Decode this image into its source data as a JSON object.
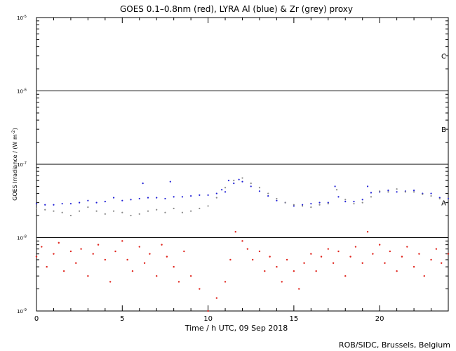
{
  "chart_data": {
    "type": "scatter",
    "title": "GOES 0.1–0.8nm (red), LYRA Al (blue) & Zr (grey) proxy",
    "xlabel": "Time / h UTC, 09 Sep 2018",
    "ylabel": "GOES Irradiance / (W m",
    "ylabel_sup": "-2",
    "ylabel_close": ")",
    "xlim": [
      0,
      24
    ],
    "ylim": [
      1e-09,
      1e-05
    ],
    "yscale": "log",
    "xticks": [
      0,
      5,
      10,
      15,
      20
    ],
    "yticks": [
      {
        "value": 1e-09,
        "base": "10",
        "exp": "-9"
      },
      {
        "value": 1e-08,
        "base": "10",
        "exp": "-8"
      },
      {
        "value": 1e-07,
        "base": "10",
        "exp": "-7"
      },
      {
        "value": 1e-06,
        "base": "10",
        "exp": "-6"
      },
      {
        "value": 1e-05,
        "base": "10",
        "exp": "-5"
      }
    ],
    "class_lines": [
      1e-08,
      1e-07,
      1e-06
    ],
    "class_labels": [
      {
        "label": "A",
        "value": 3e-08
      },
      {
        "label": "B",
        "value": 3e-07
      },
      {
        "label": "C",
        "value": 3e-06
      }
    ],
    "series": [
      {
        "color": "#1f1fd6",
        "size": 1.1,
        "points": [
          [
            0,
            2.9e-08
          ],
          [
            0.5,
            2.8e-08
          ],
          [
            1,
            2.8e-08
          ],
          [
            1.5,
            2.9e-08
          ],
          [
            2,
            2.9e-08
          ],
          [
            2.5,
            3e-08
          ],
          [
            3,
            3.2e-08
          ],
          [
            3.5,
            3e-08
          ],
          [
            4,
            3.1e-08
          ],
          [
            4.5,
            3.5e-08
          ],
          [
            5,
            3.2e-08
          ],
          [
            5.5,
            3.3e-08
          ],
          [
            6,
            3.4e-08
          ],
          [
            6.2,
            5.5e-08
          ],
          [
            6.5,
            3.5e-08
          ],
          [
            7,
            3.5e-08
          ],
          [
            7.5,
            3.4e-08
          ],
          [
            7.8,
            5.8e-08
          ],
          [
            8,
            3.6e-08
          ],
          [
            8.5,
            3.6e-08
          ],
          [
            9,
            3.7e-08
          ],
          [
            9.5,
            3.8e-08
          ],
          [
            10,
            3.8e-08
          ],
          [
            10.5,
            4e-08
          ],
          [
            10.8,
            4.5e-08
          ],
          [
            11,
            4.2e-08
          ],
          [
            11.2,
            6e-08
          ],
          [
            11.5,
            5.5e-08
          ],
          [
            11.8,
            6.2e-08
          ],
          [
            12,
            5.8e-08
          ],
          [
            12.5,
            5e-08
          ],
          [
            13,
            4.3e-08
          ],
          [
            13.5,
            3.7e-08
          ],
          [
            14,
            3.2e-08
          ],
          [
            14.5,
            3e-08
          ],
          [
            15,
            2.7e-08
          ],
          [
            15.5,
            2.8e-08
          ],
          [
            16,
            2.9e-08
          ],
          [
            16.5,
            3e-08
          ],
          [
            17,
            3e-08
          ],
          [
            17.4,
            5e-08
          ],
          [
            17.6,
            3.6e-08
          ],
          [
            18,
            3.1e-08
          ],
          [
            18.5,
            3.1e-08
          ],
          [
            19,
            3.3e-08
          ],
          [
            19.3,
            5e-08
          ],
          [
            19.5,
            4.1e-08
          ],
          [
            20,
            4.2e-08
          ],
          [
            20.5,
            4.4e-08
          ],
          [
            21,
            4.2e-08
          ],
          [
            21.5,
            4.3e-08
          ],
          [
            22,
            4.4e-08
          ],
          [
            22.5,
            4e-08
          ],
          [
            23,
            4e-08
          ],
          [
            23.5,
            3.5e-08
          ],
          [
            24,
            3.4e-08
          ]
        ]
      },
      {
        "color": "#888888",
        "size": 1.1,
        "points": [
          [
            0,
            2.5e-08
          ],
          [
            0.5,
            2.4e-08
          ],
          [
            1,
            2.3e-08
          ],
          [
            1.5,
            2.2e-08
          ],
          [
            2,
            2e-08
          ],
          [
            2.5,
            2.3e-08
          ],
          [
            3,
            2.6e-08
          ],
          [
            3.5,
            2.3e-08
          ],
          [
            4,
            2.1e-08
          ],
          [
            4.5,
            2.3e-08
          ],
          [
            5,
            2.2e-08
          ],
          [
            5.5,
            2e-08
          ],
          [
            6,
            2.1e-08
          ],
          [
            6.5,
            2.3e-08
          ],
          [
            7,
            2.4e-08
          ],
          [
            7.5,
            2.2e-08
          ],
          [
            8,
            2.5e-08
          ],
          [
            8.5,
            2.2e-08
          ],
          [
            9,
            2.3e-08
          ],
          [
            9.5,
            2.5e-08
          ],
          [
            10,
            2.7e-08
          ],
          [
            10.5,
            3.5e-08
          ],
          [
            11,
            4.8e-08
          ],
          [
            11.5,
            6e-08
          ],
          [
            12,
            6.5e-08
          ],
          [
            12.5,
            5.5e-08
          ],
          [
            13,
            4.8e-08
          ],
          [
            13.5,
            4e-08
          ],
          [
            14,
            3.4e-08
          ],
          [
            14.5,
            3e-08
          ],
          [
            15,
            2.8e-08
          ],
          [
            15.5,
            2.7e-08
          ],
          [
            16,
            2.6e-08
          ],
          [
            16.5,
            2.8e-08
          ],
          [
            17,
            2.9e-08
          ],
          [
            17.5,
            4.5e-08
          ],
          [
            18,
            3.3e-08
          ],
          [
            18.5,
            2.9e-08
          ],
          [
            19,
            3e-08
          ],
          [
            19.5,
            3.6e-08
          ],
          [
            20,
            4.3e-08
          ],
          [
            20.5,
            4.2e-08
          ],
          [
            21,
            4.6e-08
          ],
          [
            21.5,
            4.2e-08
          ],
          [
            22,
            4.2e-08
          ],
          [
            22.5,
            3.9e-08
          ],
          [
            23,
            3.7e-08
          ],
          [
            23.5,
            3.4e-08
          ],
          [
            24,
            3.3e-08
          ]
        ]
      },
      {
        "color": "#e0231b",
        "size": 1.2,
        "points": [
          [
            0,
            5.5e-09
          ],
          [
            0.3,
            7.5e-09
          ],
          [
            0.6,
            4e-09
          ],
          [
            1,
            6e-09
          ],
          [
            1.3,
            8.5e-09
          ],
          [
            1.6,
            3.5e-09
          ],
          [
            2,
            6.5e-09
          ],
          [
            2.3,
            4.5e-09
          ],
          [
            2.6,
            7e-09
          ],
          [
            3,
            3e-09
          ],
          [
            3.3,
            6e-09
          ],
          [
            3.6,
            8e-09
          ],
          [
            4,
            5e-09
          ],
          [
            4.3,
            2.5e-09
          ],
          [
            4.6,
            6.5e-09
          ],
          [
            5,
            9e-09
          ],
          [
            5.3,
            5e-09
          ],
          [
            5.6,
            3.5e-09
          ],
          [
            6,
            7.5e-09
          ],
          [
            6.3,
            4.5e-09
          ],
          [
            6.6,
            6e-09
          ],
          [
            7,
            3e-09
          ],
          [
            7.3,
            8e-09
          ],
          [
            7.6,
            5.5e-09
          ],
          [
            8,
            4e-09
          ],
          [
            8.3,
            2.5e-09
          ],
          [
            8.6,
            6.5e-09
          ],
          [
            9,
            3e-09
          ],
          [
            9.5,
            2e-09
          ],
          [
            10,
            1e-09
          ],
          [
            10.5,
            1.5e-09
          ],
          [
            11,
            2.5e-09
          ],
          [
            11.3,
            5e-09
          ],
          [
            11.6,
            1.2e-08
          ],
          [
            12,
            9e-09
          ],
          [
            12.3,
            7e-09
          ],
          [
            12.6,
            5e-09
          ],
          [
            13,
            6.5e-09
          ],
          [
            13.3,
            3.5e-09
          ],
          [
            13.6,
            5.5e-09
          ],
          [
            14,
            4e-09
          ],
          [
            14.3,
            2.5e-09
          ],
          [
            14.6,
            5e-09
          ],
          [
            15,
            3.5e-09
          ],
          [
            15.3,
            2e-09
          ],
          [
            15.6,
            4.5e-09
          ],
          [
            16,
            6e-09
          ],
          [
            16.3,
            3.5e-09
          ],
          [
            16.6,
            5.5e-09
          ],
          [
            17,
            7e-09
          ],
          [
            17.3,
            4.5e-09
          ],
          [
            17.6,
            6.5e-09
          ],
          [
            18,
            3e-09
          ],
          [
            18.3,
            5.5e-09
          ],
          [
            18.6,
            7.5e-09
          ],
          [
            19,
            4.5e-09
          ],
          [
            19.3,
            1.2e-08
          ],
          [
            19.6,
            6e-09
          ],
          [
            20,
            8e-09
          ],
          [
            20.3,
            4.5e-09
          ],
          [
            20.6,
            6.5e-09
          ],
          [
            21,
            3.5e-09
          ],
          [
            21.3,
            5.5e-09
          ],
          [
            21.6,
            7.5e-09
          ],
          [
            22,
            4e-09
          ],
          [
            22.3,
            6e-09
          ],
          [
            22.6,
            3e-09
          ],
          [
            23,
            5e-09
          ],
          [
            23.3,
            7e-09
          ],
          [
            23.6,
            4.5e-09
          ],
          [
            24,
            6e-09
          ]
        ]
      }
    ]
  },
  "footer": {
    "credit": "ROB/SIDC, Brussels, Belgium"
  }
}
